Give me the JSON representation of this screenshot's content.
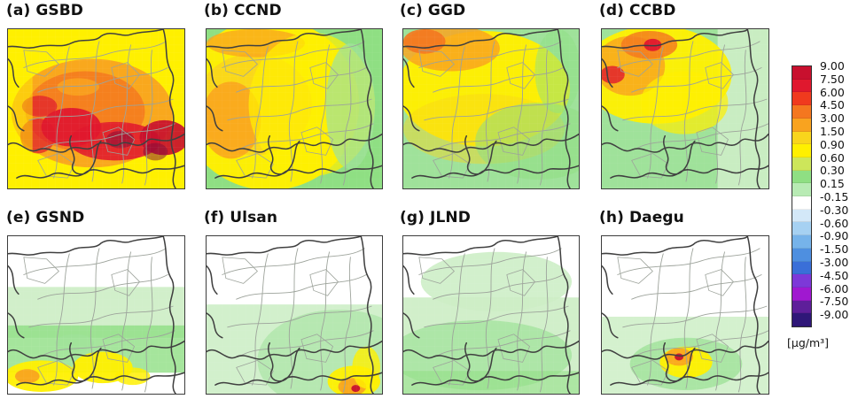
{
  "panels": [
    {
      "title": "(a) GSBD",
      "region": "GSBD",
      "pattern": "high-spread"
    },
    {
      "title": "(b) CCND",
      "region": "CCND",
      "pattern": "yellow-west"
    },
    {
      "title": "(c) GGD",
      "region": "GGD",
      "pattern": "yellow-north"
    },
    {
      "title": "(d) CCBD",
      "region": "CCBD",
      "pattern": "northwest-hotspot"
    },
    {
      "title": "(e) GSND",
      "region": "GSND",
      "pattern": "south-band"
    },
    {
      "title": "(f) Ulsan",
      "region": "Ulsan",
      "pattern": "southeast-corner"
    },
    {
      "title": "(g) JLND",
      "region": "JLND",
      "pattern": "faint-south"
    },
    {
      "title": "(h) Daegu",
      "region": "Daegu",
      "pattern": "center-hotspot"
    }
  ],
  "legend": {
    "unit_label": "[μg/m³]",
    "levels": [
      {
        "label": "9.00",
        "color": "#c8102e"
      },
      {
        "label": "7.50",
        "color": "#e0182e"
      },
      {
        "label": "6.00",
        "color": "#f03a1e"
      },
      {
        "label": "4.50",
        "color": "#f4771f"
      },
      {
        "label": "3.00",
        "color": "#f9a31f"
      },
      {
        "label": "1.50",
        "color": "#f9d51c"
      },
      {
        "label": "0.90",
        "color": "#fff000"
      },
      {
        "label": "0.60",
        "color": "#cde65a"
      },
      {
        "label": "0.30",
        "color": "#8fdf83"
      },
      {
        "label": "0.15",
        "color": "#b8ebb4"
      },
      {
        "label": "-0.15",
        "color": "#ffffff"
      },
      {
        "label": "-0.30",
        "color": "#d3e8f8"
      },
      {
        "label": "-0.60",
        "color": "#a6d1f2"
      },
      {
        "label": "-0.90",
        "color": "#76b3ea"
      },
      {
        "label": "-1.50",
        "color": "#4e8fe0"
      },
      {
        "label": "-3.00",
        "color": "#3a6fd8"
      },
      {
        "label": "-4.50",
        "color": "#7d38d8"
      },
      {
        "label": "-6.00",
        "color": "#a018d0"
      },
      {
        "label": "-7.50",
        "color": "#5e1f9a"
      },
      {
        "label": "-9.00",
        "color": "#2f1778"
      }
    ]
  },
  "colors": {
    "border": "#3c3c3c",
    "white": "#ffffff",
    "pale_green": "#cdeec6",
    "light_green": "#9fe29a",
    "green": "#8fdf83",
    "yellow": "#fff000",
    "gold": "#f9d51c",
    "orange": "#f9a31f",
    "dark_orange": "#f4771f",
    "red": "#e0182e",
    "deep_red": "#c8102e",
    "purple_red": "#7d0b3c"
  }
}
